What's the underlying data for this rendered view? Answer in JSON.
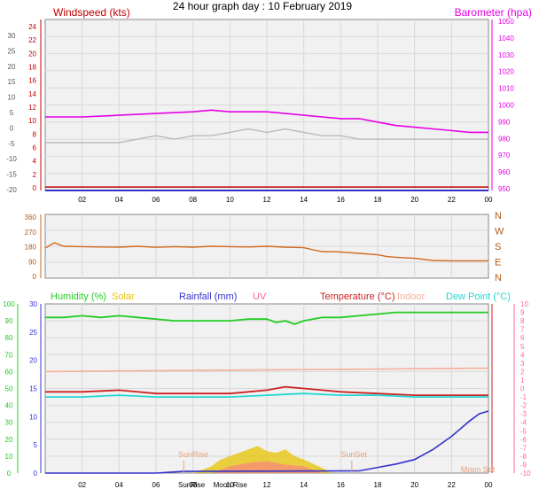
{
  "header": {
    "title": "24 hour graph day : 10 February 2019"
  },
  "colors": {
    "plot_bg": "#f1f1f1",
    "grid": "#d8d8d8",
    "axis": "#000000",
    "wind": "#c00000",
    "baro": "#e600e6",
    "gust": "#bbbbbb",
    "dir": "#d2691e",
    "humidity": "#22cc22",
    "solar": "#e6c200",
    "rain": "#3333cc",
    "uv": "#ff6699",
    "temp": "#cc2222",
    "indoor": "#f5b09a",
    "dew": "#22d6d6",
    "black": "#000000"
  },
  "chart_data": [
    {
      "type": "line",
      "name": "wind-baro",
      "title": "",
      "left_axis_title": "Windspeed (kts)",
      "right_axis_title": "Barometer (hpa)",
      "x_ticks": [
        "02",
        "04",
        "06",
        "08",
        "10",
        "12",
        "14",
        "16",
        "18",
        "20",
        "22",
        "00"
      ],
      "outer_left_ticks": [
        "30",
        "25",
        "20",
        "15",
        "10",
        "5",
        "0",
        "-5",
        "-10",
        "-15",
        "-20"
      ],
      "inner_left_ticks": [
        "24",
        "22",
        "20",
        "18",
        "16",
        "14",
        "12",
        "10",
        "8",
        "6",
        "4",
        "2",
        "0"
      ],
      "right_ticks": [
        "1050",
        "1040",
        "1030",
        "1020",
        "1010",
        "1000",
        "990",
        "980",
        "970",
        "960",
        "950"
      ],
      "ylim_kts": [
        0,
        25
      ],
      "ylim_hpa": [
        950,
        1050
      ],
      "grid": true,
      "series": [
        {
          "key": "baro",
          "x": [
            0,
            2,
            4,
            6,
            8,
            9,
            10,
            11,
            12,
            13,
            14,
            15,
            16,
            17,
            18,
            19,
            20,
            21,
            22,
            23,
            24
          ],
          "y": [
            993,
            993,
            994,
            995,
            996,
            997,
            996,
            996,
            996,
            995,
            994,
            993,
            992,
            992,
            990,
            988,
            987,
            986,
            985,
            984,
            984
          ]
        },
        {
          "key": "gust",
          "x": [
            0,
            1,
            2,
            3,
            4,
            5,
            6,
            7,
            8,
            9,
            10,
            11,
            12,
            13,
            14,
            15,
            16,
            17,
            18,
            19,
            20,
            21,
            22,
            23,
            24
          ],
          "y": [
            7,
            7,
            7,
            7,
            7,
            7.5,
            8,
            7.5,
            8,
            8,
            8.5,
            9,
            8.5,
            9,
            8.5,
            8,
            8,
            7.5,
            7.5,
            7.5,
            7.5,
            7.5,
            7.5,
            7.5,
            7.5
          ]
        },
        {
          "key": "wind_dir_base",
          "x": [
            0,
            24
          ],
          "y": [
            0.5,
            0.5
          ]
        },
        {
          "key": "wind_avg",
          "x": [
            0,
            24
          ],
          "y": [
            0,
            0
          ]
        }
      ]
    },
    {
      "type": "line",
      "name": "wind-direction",
      "left_ticks": [
        "360",
        "270",
        "180",
        "90",
        "0"
      ],
      "right_ticks": [
        "N",
        "W",
        "S",
        "E",
        "N"
      ],
      "ylim": [
        0,
        360
      ],
      "grid": true,
      "series": [
        {
          "key": "dir",
          "x": [
            0,
            0.5,
            1,
            2,
            3,
            4,
            5,
            6,
            7,
            8,
            9,
            10,
            11,
            12,
            13,
            14,
            14.5,
            15,
            16,
            17,
            18,
            18.5,
            19,
            20,
            21,
            22,
            23,
            24
          ],
          "y": [
            170,
            200,
            180,
            178,
            176,
            175,
            180,
            174,
            178,
            175,
            180,
            178,
            176,
            180,
            175,
            172,
            160,
            150,
            148,
            140,
            132,
            122,
            118,
            112,
            100,
            98,
            98,
            98
          ]
        }
      ]
    },
    {
      "type": "line",
      "name": "multi-sensor",
      "legend": [
        "Humidity (%)",
        "Solar",
        "Rainfall (mm)",
        "UV",
        "Temperature (°C)",
        "Indoor",
        "Dew Point (°C)"
      ],
      "x_ticks": [
        "02",
        "04",
        "06",
        "08",
        "10",
        "12",
        "14",
        "16",
        "18",
        "20",
        "22",
        "00"
      ],
      "left_ticks_humidity": [
        "100",
        "90",
        "80",
        "70",
        "60",
        "50",
        "40",
        "30",
        "20",
        "10",
        "0"
      ],
      "left_ticks_rain": [
        "30",
        "25",
        "20",
        "15",
        "10",
        "5",
        "0"
      ],
      "right_ticks_temp": [
        "10",
        "9",
        "8",
        "7",
        "6",
        "5",
        "4",
        "3",
        "2",
        "1",
        "0",
        "-1",
        "-2",
        "-3",
        "-4",
        "-5",
        "-6",
        "-7",
        "-8",
        "-9",
        "-10"
      ],
      "ylim_humidity": [
        0,
        100
      ],
      "ylim_temp": [
        -20,
        10
      ],
      "annotations": [
        "SunRise",
        "SunSet",
        "Moon Rise",
        "Moon Set"
      ],
      "grid": true,
      "series": [
        {
          "key": "humidity",
          "x": [
            0,
            1,
            2,
            3,
            4,
            5,
            6,
            7,
            8,
            9,
            10,
            11,
            12,
            12.5,
            13,
            13.5,
            14,
            15,
            16,
            17,
            18,
            19,
            20,
            21,
            22,
            23,
            24
          ],
          "y": [
            92,
            92,
            93,
            92,
            93,
            92,
            91,
            90,
            90,
            90,
            90,
            91,
            91,
            89,
            90,
            88,
            90,
            92,
            92,
            93,
            94,
            95,
            95,
            95,
            95,
            95,
            95
          ]
        },
        {
          "key": "indoor",
          "x": [
            0,
            24
          ],
          "y": [
            60,
            62
          ]
        },
        {
          "key": "temp",
          "x": [
            0,
            2,
            4,
            6,
            8,
            10,
            11,
            12,
            13,
            14,
            15,
            16,
            18,
            20,
            22,
            24
          ],
          "y": [
            48,
            48,
            49,
            47,
            47,
            47,
            48,
            49,
            51,
            50,
            49,
            48,
            47,
            46,
            46,
            46
          ]
        },
        {
          "key": "dew",
          "x": [
            0,
            2,
            4,
            6,
            8,
            10,
            12,
            14,
            16,
            18,
            20,
            22,
            24
          ],
          "y": [
            45,
            45,
            46,
            45,
            45,
            45,
            46,
            47,
            46,
            46,
            45,
            45,
            45
          ]
        },
        {
          "key": "rain",
          "x": [
            0,
            6,
            7,
            7.5,
            8,
            17,
            18,
            19,
            20,
            21,
            22,
            23,
            23.5,
            24
          ],
          "y": [
            0,
            0,
            0.2,
            0.3,
            0.3,
            0.4,
            1.0,
            1.6,
            2.4,
            4.2,
            6.5,
            9.3,
            10.5,
            11
          ]
        },
        {
          "key": "solar",
          "x": [
            8,
            9,
            9.5,
            10,
            10.5,
            11,
            11.5,
            12,
            12.5,
            13,
            13.5,
            14,
            15,
            15.5
          ],
          "y": [
            0,
            4,
            8,
            10,
            12,
            14,
            16,
            13,
            12,
            14,
            10,
            8,
            3,
            0
          ]
        },
        {
          "key": "uv",
          "x": [
            9,
            10,
            11,
            12,
            13,
            14,
            15
          ],
          "y": [
            0,
            4,
            6,
            7,
            5,
            4,
            0
          ]
        }
      ]
    }
  ]
}
